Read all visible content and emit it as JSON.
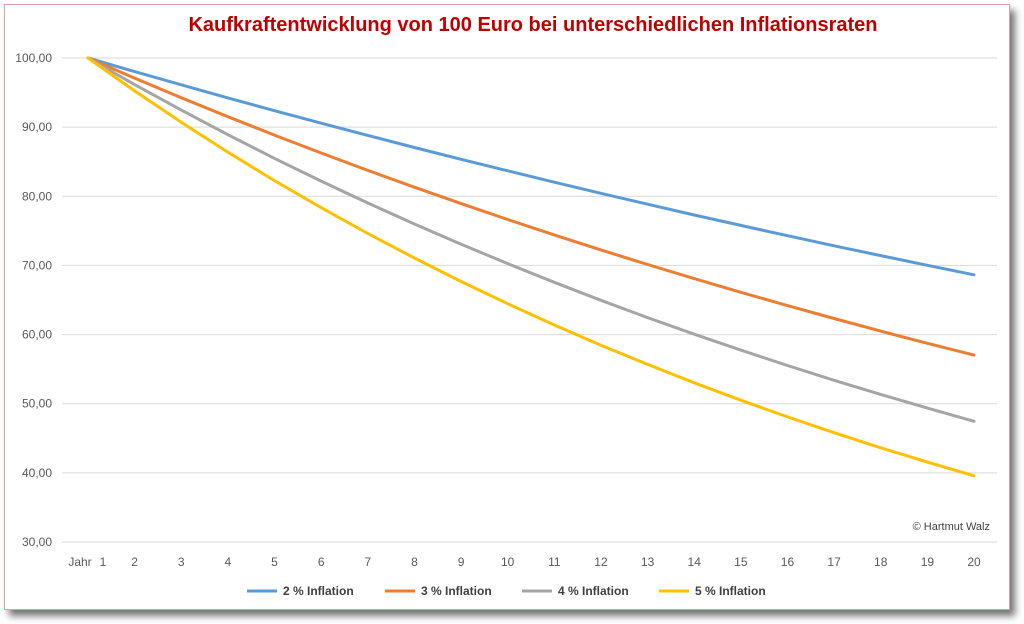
{
  "chart_data": {
    "type": "line",
    "title": "Kaufkraftentwicklung von 100 Euro bei unterschiedlichen Inflationsraten",
    "x_axis_first_label": "Jahr",
    "x": [
      1,
      2,
      3,
      4,
      5,
      6,
      7,
      8,
      9,
      10,
      11,
      12,
      13,
      14,
      15,
      16,
      17,
      18,
      19,
      20
    ],
    "ylim": [
      30,
      100
    ],
    "yticks": [
      "30,00",
      "40,00",
      "50,00",
      "60,00",
      "70,00",
      "80,00",
      "90,00",
      "100,00"
    ],
    "ytick_values": [
      30,
      40,
      50,
      60,
      70,
      80,
      90,
      100
    ],
    "grid": true,
    "legend_position": "bottom",
    "annotation": "© Hartmut Walz",
    "series": [
      {
        "name": "2 % Inflation",
        "color": "#5b9bd5",
        "values": [
          100.0,
          98.04,
          96.12,
          94.23,
          92.38,
          90.57,
          88.8,
          87.06,
          85.35,
          83.68,
          82.03,
          80.43,
          78.85,
          77.3,
          75.79,
          74.3,
          72.84,
          71.42,
          70.02,
          68.64
        ]
      },
      {
        "name": "3 % Inflation",
        "color": "#ed7d31",
        "values": [
          100.0,
          97.09,
          94.26,
          91.51,
          88.85,
          86.26,
          83.75,
          81.31,
          78.94,
          76.64,
          74.41,
          72.24,
          70.14,
          68.1,
          66.11,
          64.19,
          62.32,
          60.5,
          58.74,
          57.03
        ]
      },
      {
        "name": "4 % Inflation",
        "color": "#a5a5a5",
        "values": [
          100.0,
          96.15,
          92.46,
          88.9,
          85.48,
          82.19,
          79.03,
          75.99,
          73.07,
          70.26,
          67.56,
          64.96,
          62.46,
          60.06,
          57.75,
          55.53,
          53.39,
          51.34,
          49.36,
          47.46
        ]
      },
      {
        "name": "5 % Inflation",
        "color": "#ffc000",
        "values": [
          100.0,
          95.24,
          90.7,
          86.38,
          82.27,
          78.35,
          74.62,
          71.07,
          67.68,
          64.46,
          61.39,
          58.47,
          55.68,
          53.03,
          50.51,
          48.1,
          45.81,
          43.63,
          41.55,
          39.57
        ]
      }
    ]
  }
}
